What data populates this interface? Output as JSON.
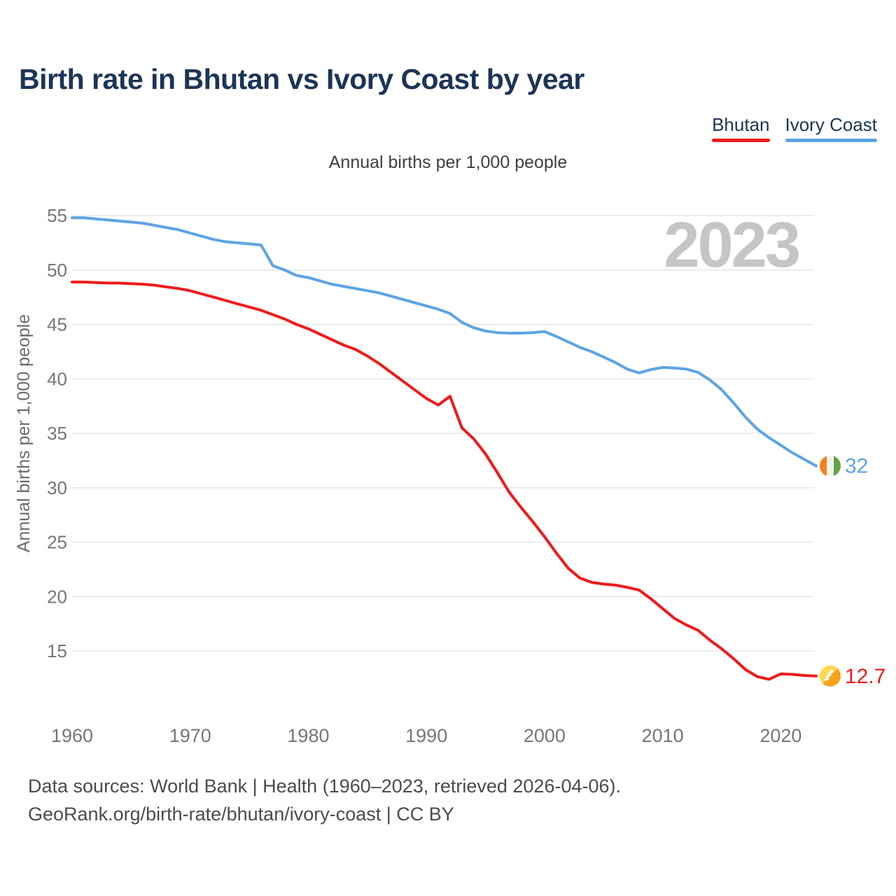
{
  "page": {
    "title": "Birth rate in Bhutan vs Ivory Coast by year",
    "subtitle": "Annual births per 1,000 people",
    "watermark": "2023",
    "footer_line1": "Data sources: World Bank | Health (1960–2023, retrieved 2026-04-06).",
    "footer_line2": "GeoRank.org/birth-rate/bhutan/ivory-coast | CC BY"
  },
  "legend": {
    "items": [
      {
        "label": "Bhutan",
        "color": "#ee1b1b"
      },
      {
        "label": "Ivory Coast",
        "color": "#5da4e4"
      }
    ]
  },
  "colors": {
    "title": "#1c3556",
    "gridline": "#e7e7e7",
    "tick_text": "#767676",
    "axis_label": "#6b6b6b",
    "watermark": "#c5c5c5",
    "flag_civ_orange": "#f48120",
    "flag_civ_white": "#f4f3ee",
    "flag_civ_green": "#64a346",
    "flag_btn_yellow": "#ffd84f",
    "flag_btn_orange": "#f6a21c"
  },
  "chart_data": {
    "type": "line",
    "title": "Birth rate in Bhutan vs Ivory Coast by year",
    "subtitle": "Annual births per 1,000 people",
    "ylabel": "Annual births per 1,000 people",
    "xlabel": "",
    "grid": true,
    "legend_position": "top-right",
    "watermark": "2023",
    "ylim": [
      12,
      57
    ],
    "yticks": [
      15,
      20,
      25,
      30,
      35,
      40,
      45,
      50,
      55
    ],
    "xticks": [
      1960,
      1970,
      1980,
      1990,
      2000,
      2010,
      2020
    ],
    "x": [
      1960,
      1961,
      1962,
      1963,
      1964,
      1965,
      1966,
      1967,
      1968,
      1969,
      1970,
      1971,
      1972,
      1973,
      1974,
      1975,
      1976,
      1977,
      1978,
      1979,
      1980,
      1981,
      1982,
      1983,
      1984,
      1985,
      1986,
      1987,
      1988,
      1989,
      1990,
      1991,
      1992,
      1993,
      1994,
      1995,
      1996,
      1997,
      1998,
      1999,
      2000,
      2001,
      2002,
      2003,
      2004,
      2005,
      2006,
      2007,
      2008,
      2009,
      2010,
      2011,
      2012,
      2013,
      2014,
      2015,
      2016,
      2017,
      2018,
      2019,
      2020,
      2021,
      2022,
      2023
    ],
    "series": [
      {
        "name": "Bhutan",
        "color": "#ee1b1b",
        "end_label": "12.7",
        "flag": "bhutan",
        "values": [
          48.9,
          48.9,
          48.85,
          48.8,
          48.8,
          48.75,
          48.7,
          48.6,
          48.45,
          48.3,
          48.1,
          47.8,
          47.5,
          47.2,
          46.9,
          46.6,
          46.3,
          45.9,
          45.5,
          45.0,
          44.6,
          44.1,
          43.6,
          43.1,
          42.7,
          42.1,
          41.4,
          40.6,
          39.8,
          39.0,
          38.2,
          37.6,
          38.4,
          35.5,
          34.5,
          33.1,
          31.4,
          29.6,
          28.2,
          26.9,
          25.5,
          24.0,
          22.6,
          21.7,
          21.3,
          21.15,
          21.05,
          20.85,
          20.6,
          19.8,
          18.9,
          18.0,
          17.4,
          16.9,
          16.0,
          15.2,
          14.3,
          13.3,
          12.65,
          12.4,
          12.9,
          12.85,
          12.75,
          12.7
        ]
      },
      {
        "name": "Ivory Coast",
        "color": "#5da4e4",
        "end_label": "32",
        "flag": "ivory-coast",
        "values": [
          54.8,
          54.8,
          54.7,
          54.6,
          54.5,
          54.4,
          54.3,
          54.1,
          53.9,
          53.7,
          53.4,
          53.1,
          52.8,
          52.6,
          52.5,
          52.4,
          52.3,
          50.4,
          50.0,
          49.5,
          49.3,
          49.0,
          48.7,
          48.5,
          48.3,
          48.1,
          47.9,
          47.6,
          47.3,
          47.0,
          46.7,
          46.4,
          46.0,
          45.2,
          44.7,
          44.4,
          44.25,
          44.2,
          44.2,
          44.25,
          44.35,
          43.9,
          43.4,
          42.9,
          42.5,
          42.0,
          41.5,
          40.9,
          40.55,
          40.85,
          41.05,
          41.0,
          40.9,
          40.6,
          39.9,
          39.0,
          37.8,
          36.5,
          35.4,
          34.6,
          33.9,
          33.2,
          32.6,
          32.0
        ]
      }
    ]
  }
}
